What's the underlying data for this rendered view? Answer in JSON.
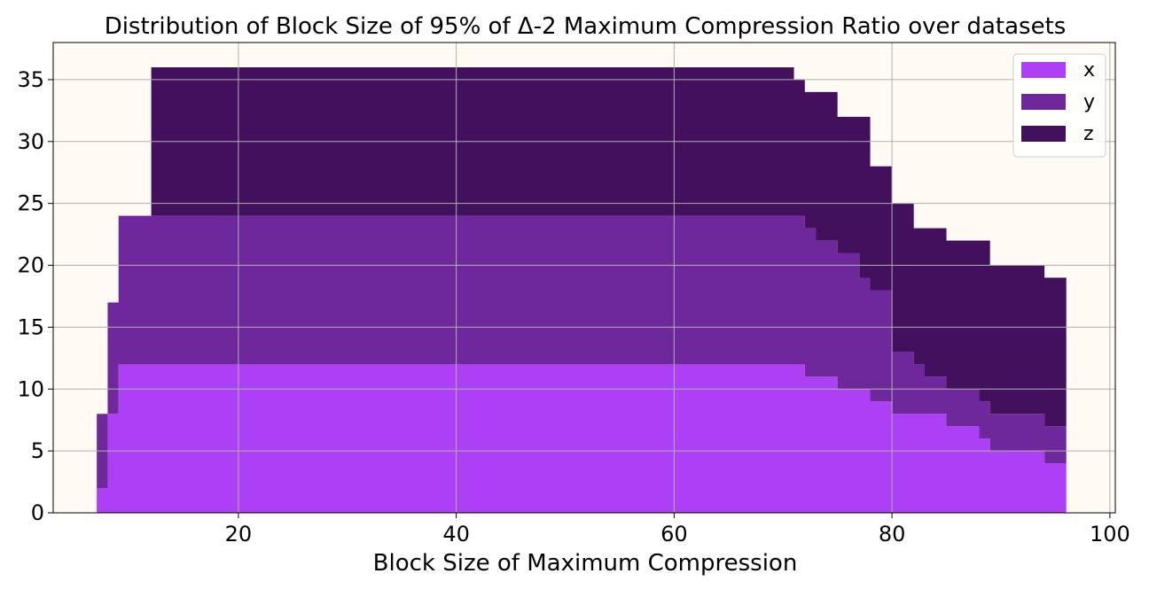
{
  "chart_data": {
    "type": "area",
    "title": "Distribution of Block Size of 95% of Δ-2 Maximum Compression Ratio over datasets",
    "xlabel": "Block Size of Maximum Compression",
    "ylabel": "",
    "xlim": [
      3,
      100.5
    ],
    "ylim": [
      0,
      38
    ],
    "xticks": [
      20,
      40,
      60,
      80,
      100
    ],
    "yticks": [
      0,
      5,
      10,
      15,
      20,
      25,
      30,
      35
    ],
    "grid": true,
    "legend_position": "top-right",
    "background": "#fffbf4",
    "stacked": true,
    "step": true,
    "x_end": 96,
    "x": [
      7,
      8,
      9,
      12,
      71,
      72,
      73,
      75,
      77,
      78,
      80,
      82,
      83,
      85,
      88,
      89,
      94
    ],
    "series": [
      {
        "name": "x",
        "color": "#ad3ff5",
        "values": [
          2,
          8,
          12,
          12,
          12,
          11,
          11,
          10,
          10,
          9,
          8,
          8,
          8,
          7,
          6,
          5,
          4
        ]
      },
      {
        "name": "y",
        "color": "#6e289c",
        "values": [
          6,
          9,
          12,
          12,
          12,
          12,
          11,
          11,
          9,
          9,
          5,
          4,
          3,
          3,
          3,
          3,
          3
        ]
      },
      {
        "name": "z",
        "color": "#43105e",
        "values": [
          0,
          0,
          0,
          12,
          11,
          11,
          12,
          11,
          13,
          10,
          12,
          11,
          12,
          12,
          13,
          12,
          12
        ]
      }
    ]
  }
}
